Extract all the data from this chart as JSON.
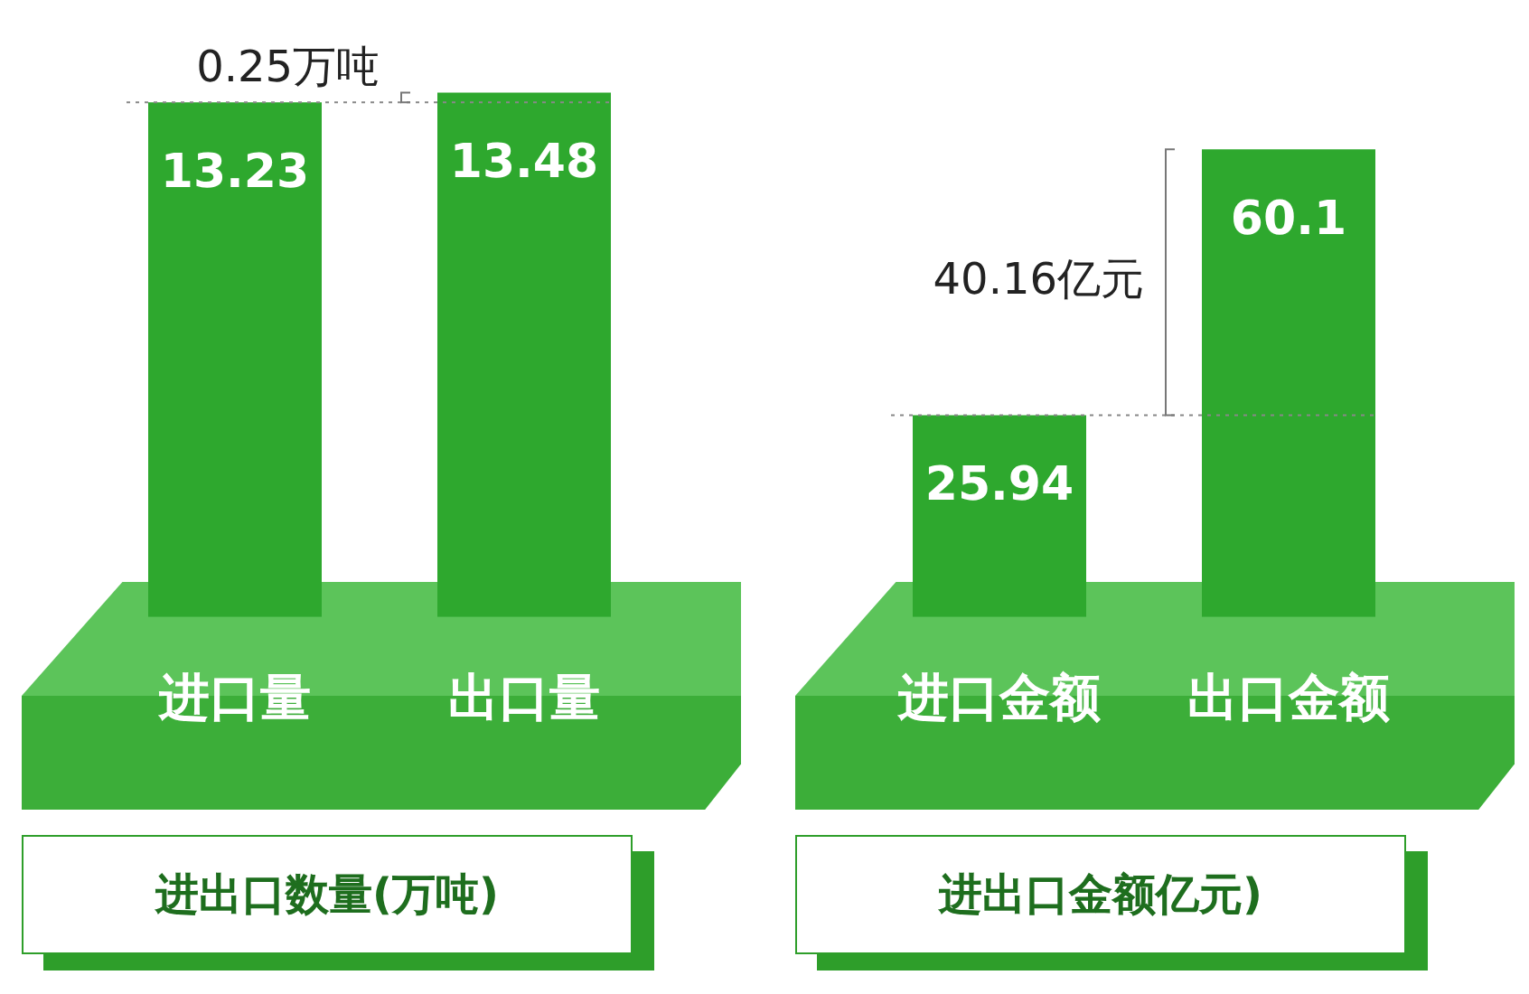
{
  "chart_data": [
    {
      "type": "bar",
      "title": "进出口数量(万吨)",
      "categories": [
        "进口量",
        "出口量"
      ],
      "values": [
        13.23,
        13.48
      ],
      "color": "#2ea82e",
      "data_labels": true,
      "tick_labels": "x",
      "annotations": [
        "0.25万吨"
      ],
      "ref_lines": [
        {
          "axis": "y",
          "value": 13.23,
          "color": "#888888",
          "line_style": "dotted"
        }
      ]
    },
    {
      "type": "bar",
      "title": "进出口金额亿元)",
      "categories": [
        "进口金额",
        "出口金额"
      ],
      "values": [
        25.94,
        60.1
      ],
      "color": "#2ea82e",
      "data_labels": true,
      "tick_labels": "x",
      "annotations": [
        "40.16亿元"
      ],
      "ref_lines": [
        {
          "axis": "y",
          "value": 25.94,
          "color": "#888888",
          "line_style": "dotted"
        }
      ]
    }
  ]
}
